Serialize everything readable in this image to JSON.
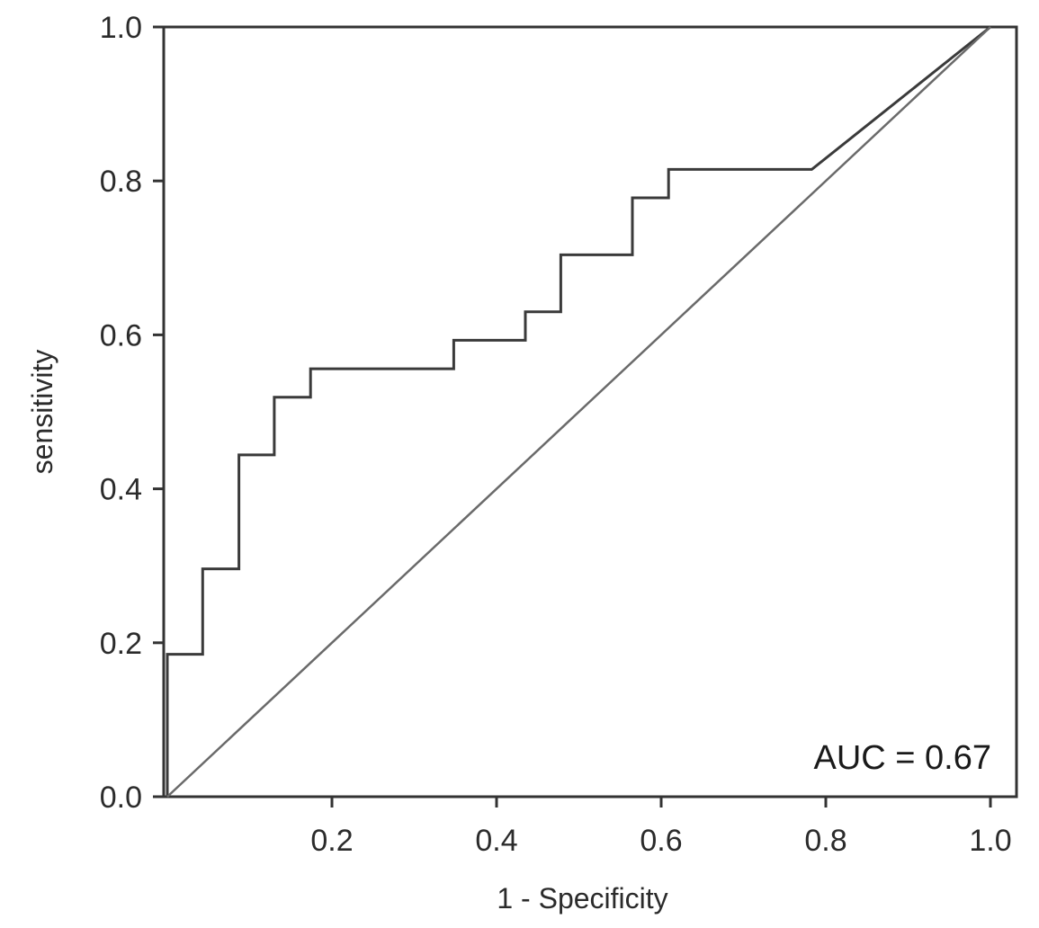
{
  "chart_data": {
    "type": "line",
    "xlabel": "1 - Specificity",
    "ylabel": "sensitivity",
    "xlim": [
      0,
      1.0
    ],
    "ylim": [
      0,
      1.0
    ],
    "x_ticks": [
      "0.2",
      "0.4",
      "0.6",
      "0.8",
      "1.0"
    ],
    "x_tick_values": [
      0.2,
      0.4,
      0.6,
      0.8,
      1.0
    ],
    "y_ticks": [
      "0.0",
      "0.2",
      "0.4",
      "0.6",
      "0.8",
      "1.0"
    ],
    "y_tick_values": [
      0.0,
      0.2,
      0.4,
      0.6,
      0.8,
      1.0
    ],
    "grid": false,
    "annotation": "AUC = 0.67",
    "series": [
      {
        "x": [
          0.0,
          0.0,
          0.043,
          0.043,
          0.087,
          0.087,
          0.13,
          0.13,
          0.174,
          0.174,
          0.348,
          0.348,
          0.435,
          0.435,
          0.478,
          0.478,
          0.565,
          0.565,
          0.609,
          0.609,
          0.783,
          1.0
        ],
        "y": [
          0.0,
          0.185,
          0.185,
          0.296,
          0.296,
          0.444,
          0.444,
          0.519,
          0.519,
          0.556,
          0.556,
          0.593,
          0.593,
          0.63,
          0.63,
          0.704,
          0.704,
          0.778,
          0.778,
          0.815,
          0.815,
          1.0
        ],
        "color": "#3a3a3a"
      },
      {
        "x": [
          0.0,
          1.0
        ],
        "y": [
          0.0,
          1.0
        ],
        "color": "#6a6a6a"
      }
    ],
    "frame_color": "#333333"
  }
}
